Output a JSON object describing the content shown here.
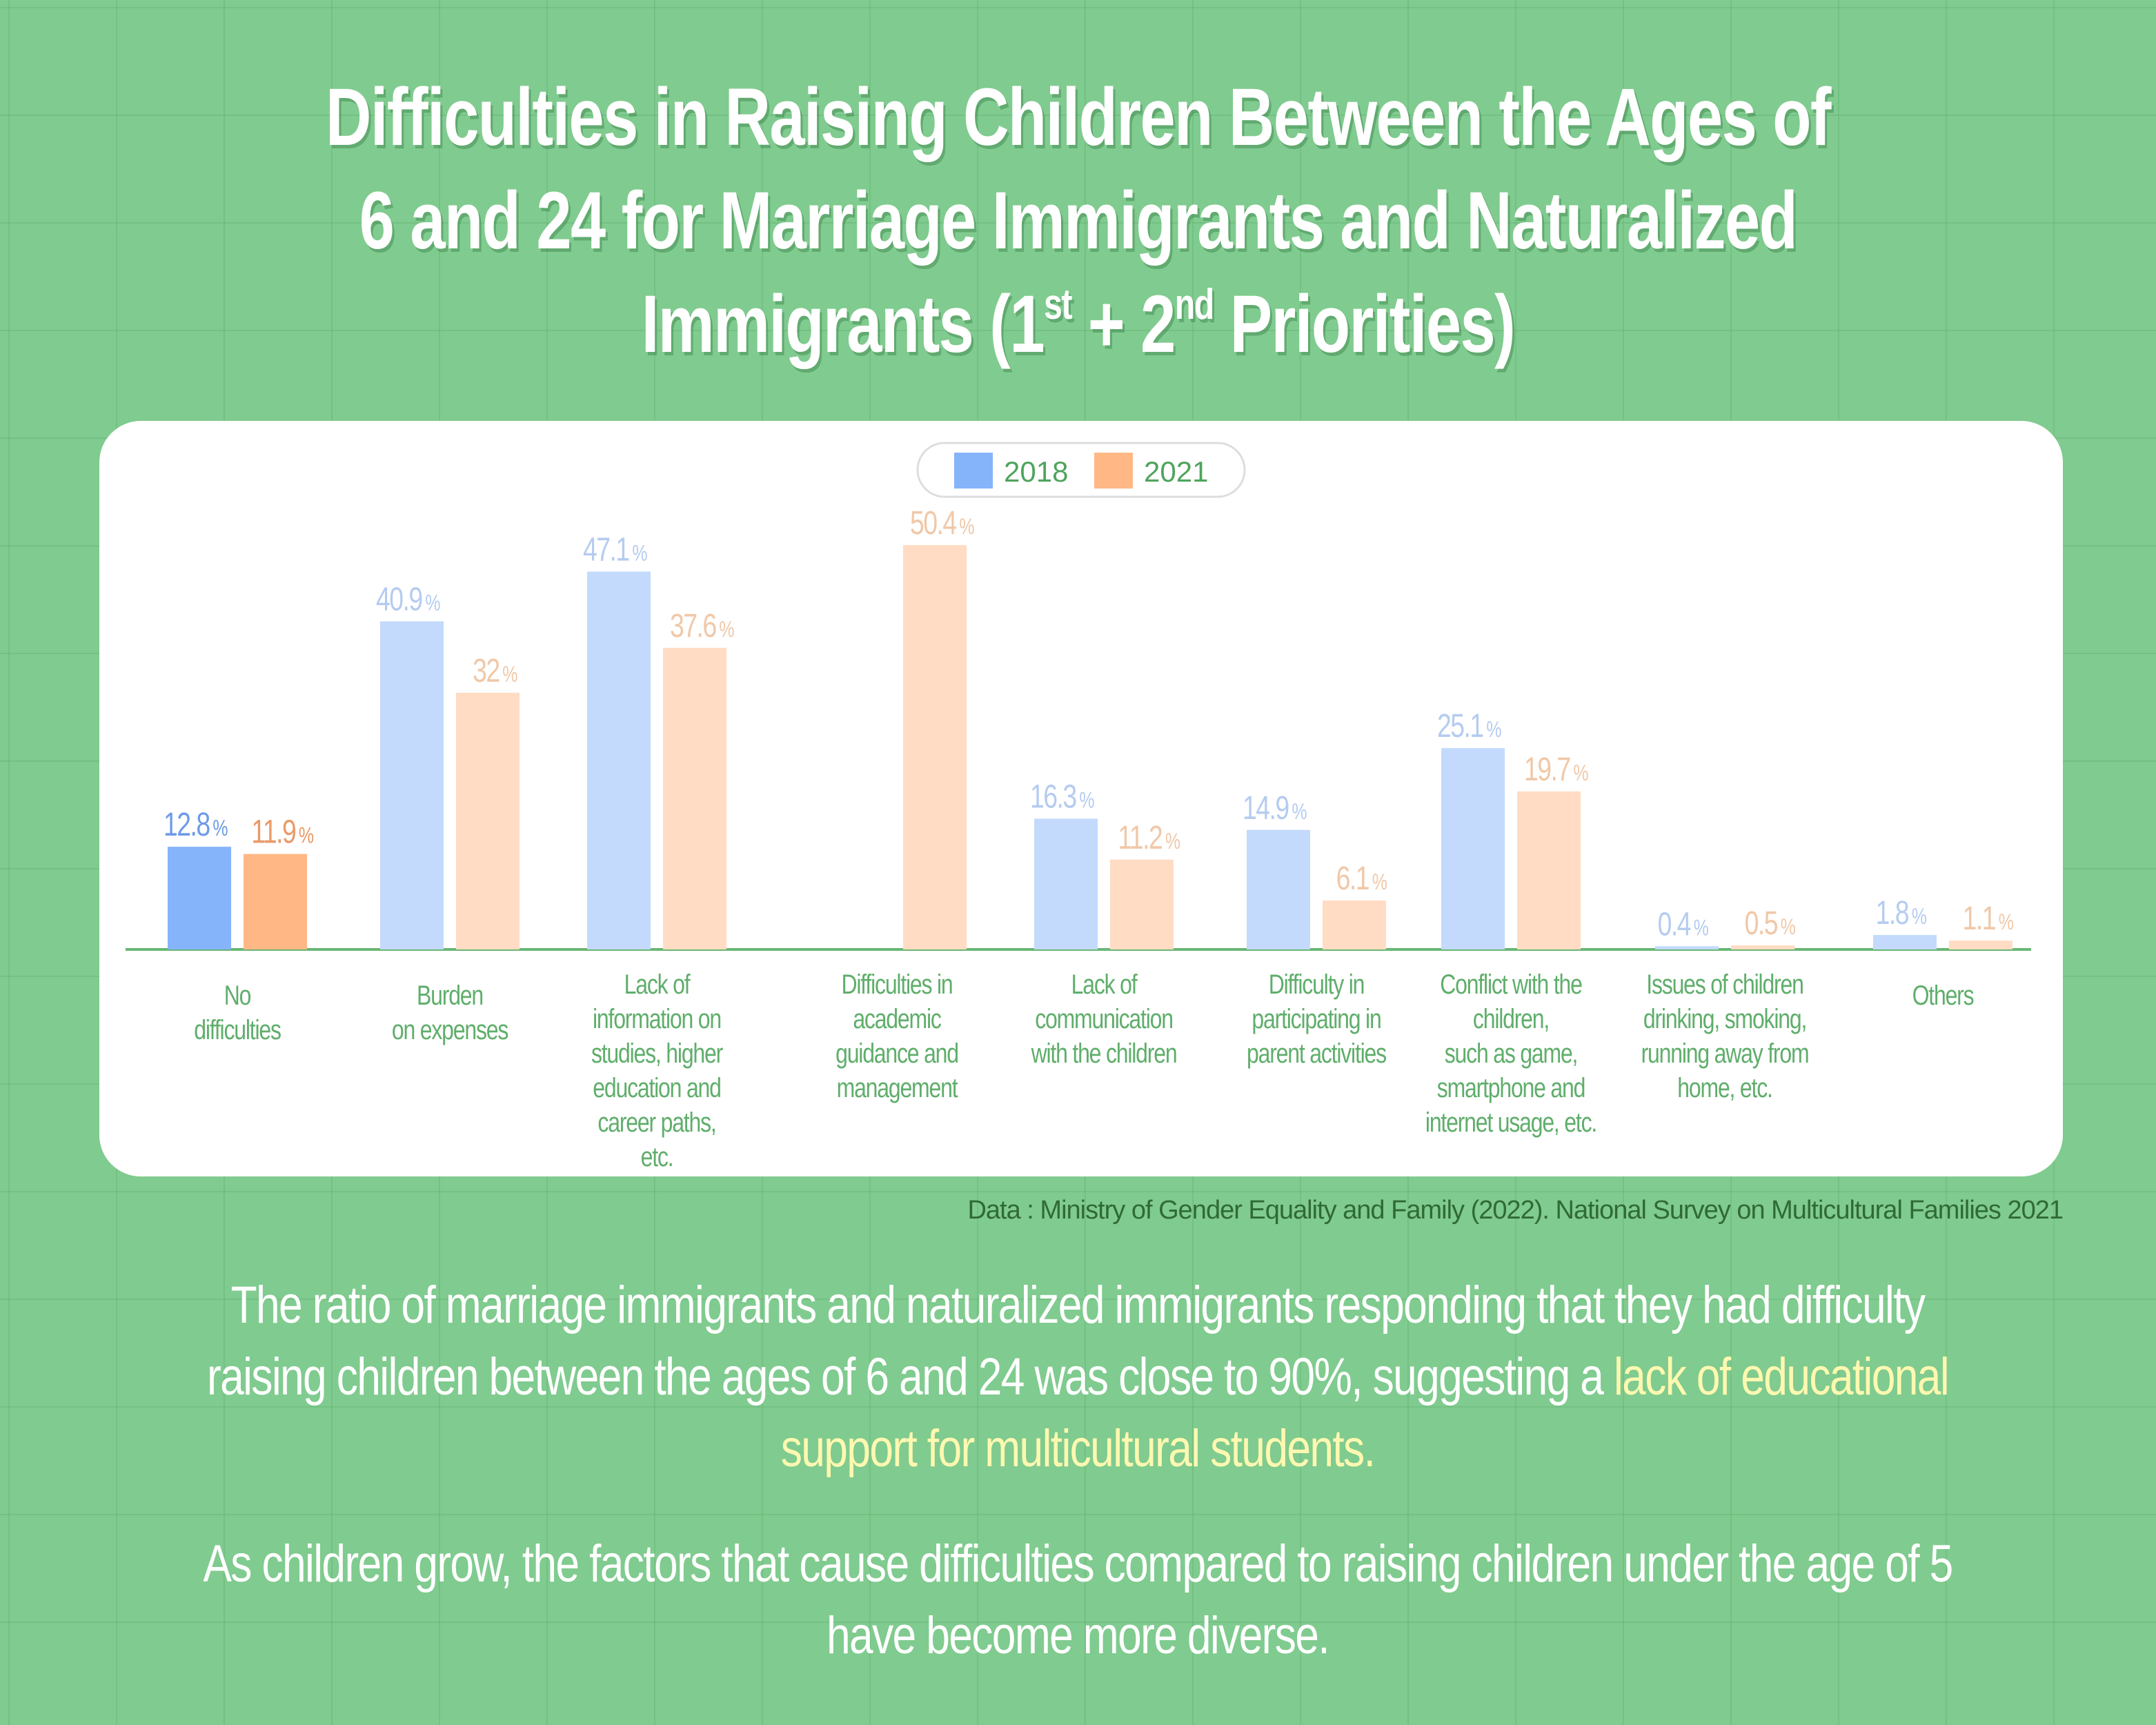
{
  "title": {
    "line1": "Difficulties in Raising Children Between the Ages of",
    "line2": "6 and 24 for Marriage Immigrants and Naturalized",
    "line3_a": "Immigrants (1",
    "line3_sup1": "st",
    "line3_b": " + 2",
    "line3_sup2": "nd",
    "line3_c": " Priorities)"
  },
  "chart_data": {
    "type": "bar",
    "categories": [
      "No difficulties",
      "Burden on expenses",
      "Lack of information on studies, higher education and career paths, etc.",
      "Difficulties in academic guidance and management",
      "Lack of communication with the children",
      "Difficulty in participating in parent activities",
      "Conflict with the children, such as game, smartphone and internet usage, etc.",
      "Issues of children drinking, smoking, running away from home, etc.",
      "Others"
    ],
    "category_label_lines": [
      [
        "No",
        "difficulties"
      ],
      [
        "Burden",
        "on expenses"
      ],
      [
        "Lack of",
        "information on",
        "studies, higher",
        "education and",
        "career paths,",
        "etc."
      ],
      [
        "Difficulties in",
        "academic",
        "guidance and",
        "management"
      ],
      [
        "Lack of",
        "communication",
        "with the children"
      ],
      [
        "Difficulty in",
        "participating in",
        "parent activities"
      ],
      [
        "Conflict with the",
        "children,",
        "such as game,",
        "smartphone and",
        "internet usage, etc."
      ],
      [
        "Issues of children",
        "drinking, smoking,",
        "running away from",
        "home, etc."
      ],
      [
        "Others"
      ]
    ],
    "series": [
      {
        "name": "2018",
        "values": [
          12.8,
          40.9,
          47.1,
          null,
          16.3,
          14.9,
          25.1,
          0.4,
          1.8
        ]
      },
      {
        "name": "2021",
        "values": [
          11.9,
          32,
          37.6,
          50.4,
          11.2,
          6.1,
          19.7,
          0.5,
          1.1
        ]
      }
    ],
    "unit": "%",
    "ylim": [
      0,
      50.4
    ],
    "grid": false,
    "legend_placement": "top-center",
    "highlighted_category": "No difficulties",
    "colors": {
      "2018": "#86b4fb",
      "2021": "#ffb885",
      "2018_muted": "#c3dafd",
      "2021_muted": "#ffdcc3",
      "2018_label": "#6f9be8",
      "2021_label": "#e99a68",
      "2018_label_muted": "#b5ccf0",
      "2021_label_muted": "#f0c8a8",
      "axis": "#6ab774",
      "category_text": "#5fae6b"
    }
  },
  "source": "Data : Ministry of Gender Equality and Family (2022). National Survey on Multicultural Families 2021",
  "body": {
    "p1_text": "The ratio of marriage immigrants and naturalized immigrants responding that they had difficulty raising children between the ages of 6 and 24 was close to 90%, suggesting a ",
    "p1_highlight": "lack of educational support for multicultural students.",
    "p2_text": "As children grow, the factors that cause difficulties compared to raising children under the age of 5 have become more diverse."
  },
  "background_color": "#80cb8f"
}
